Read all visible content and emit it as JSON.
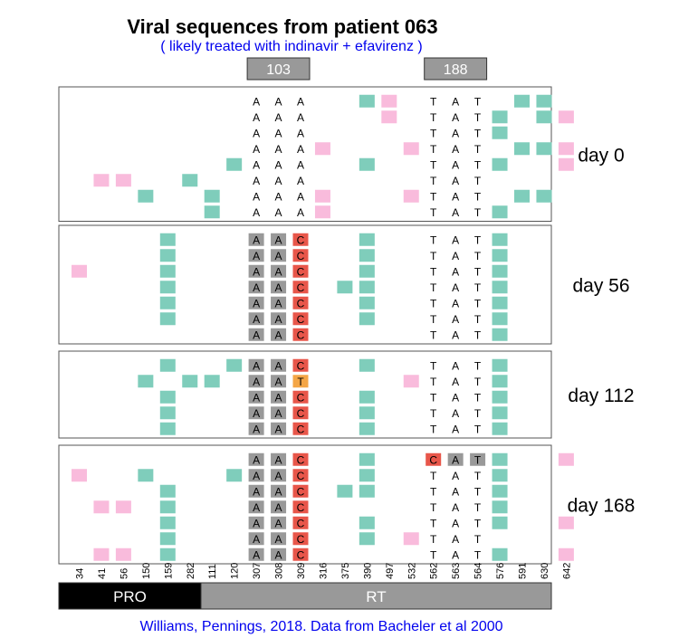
{
  "title": "Viral sequences from patient 063",
  "subtitle": "( likely treated with indinavir + efavirenz )",
  "codon_labels": [
    {
      "text": "103",
      "from": 307,
      "to": 309
    },
    {
      "text": "188",
      "from": 562,
      "to": 564
    }
  ],
  "positions": [
    "34",
    "41",
    "56",
    "150",
    "159",
    "282",
    "111",
    "120",
    "307",
    "308",
    "309",
    "316",
    "375",
    "390",
    "497",
    "532",
    "562",
    "563",
    "564",
    "576",
    "591",
    "630",
    "642"
  ],
  "regions": [
    {
      "label": "PRO",
      "from": 0,
      "to": 5,
      "color": "#000000"
    },
    {
      "label": "RT",
      "from": 6,
      "to": 22,
      "color": "#999999"
    }
  ],
  "credit": "Williams, Pennings, 2018. Data from Bacheler et al 2000",
  "colors": {
    "title": "#000000",
    "subtitle": "#0000ee",
    "credit": "#0000ee",
    "teal": "#7fcdbb",
    "pink": "#f9bbdc",
    "gray": "#999999",
    "red": "#e8564a",
    "orange": "#f4a646",
    "label_box": "#999999"
  },
  "panels": [
    {
      "day": "day 0",
      "rows": [
        {
          "cells": {
            "307": "A",
            "308": "A",
            "309": "A",
            "562": "T",
            "563": "A",
            "564": "T",
            "390": "teal",
            "497": "pink",
            "591": "teal",
            "630": "teal"
          }
        },
        {
          "cells": {
            "307": "A",
            "308": "A",
            "309": "A",
            "562": "T",
            "563": "A",
            "564": "T",
            "497": "pink",
            "576": "teal",
            "630": "teal",
            "642": "pink"
          }
        },
        {
          "cells": {
            "307": "A",
            "308": "A",
            "309": "A",
            "562": "T",
            "563": "A",
            "564": "T",
            "576": "teal"
          }
        },
        {
          "cells": {
            "307": "A",
            "308": "A",
            "309": "A",
            "562": "T",
            "563": "A",
            "564": "T",
            "316": "pink",
            "532": "pink",
            "591": "teal",
            "630": "teal",
            "642": "pink"
          }
        },
        {
          "cells": {
            "307": "A",
            "308": "A",
            "309": "A",
            "562": "T",
            "563": "A",
            "564": "T",
            "120": "teal",
            "390": "teal",
            "576": "teal",
            "642": "pink"
          }
        },
        {
          "cells": {
            "307": "A",
            "308": "A",
            "309": "A",
            "562": "T",
            "563": "A",
            "564": "T",
            "41": "pink",
            "56": "pink",
            "282": "teal"
          }
        },
        {
          "cells": {
            "307": "A",
            "308": "A",
            "309": "A",
            "562": "T",
            "563": "A",
            "564": "T",
            "150": "teal",
            "111": "teal",
            "316": "pink",
            "532": "pink",
            "591": "teal",
            "630": "teal"
          }
        },
        {
          "cells": {
            "307": "A",
            "308": "A",
            "309": "A",
            "562": "T",
            "563": "A",
            "564": "T",
            "111": "teal",
            "316": "pink",
            "576": "teal"
          }
        }
      ]
    },
    {
      "day": "day 56",
      "rows": [
        {
          "cells": {
            "307": "A:gray",
            "308": "A:gray",
            "309": "C:red",
            "562": "T",
            "563": "A",
            "564": "T",
            "159": "teal",
            "390": "teal",
            "576": "teal"
          }
        },
        {
          "cells": {
            "307": "A:gray",
            "308": "A:gray",
            "309": "C:red",
            "562": "T",
            "563": "A",
            "564": "T",
            "159": "teal",
            "390": "teal",
            "576": "teal"
          }
        },
        {
          "cells": {
            "307": "A:gray",
            "308": "A:gray",
            "309": "C:red",
            "562": "T",
            "563": "A",
            "564": "T",
            "34": "pink",
            "159": "teal",
            "390": "teal",
            "576": "teal"
          }
        },
        {
          "cells": {
            "307": "A:gray",
            "308": "A:gray",
            "309": "C:red",
            "562": "T",
            "563": "A",
            "564": "T",
            "159": "teal",
            "375": "teal",
            "390": "teal",
            "576": "teal"
          }
        },
        {
          "cells": {
            "307": "A:gray",
            "308": "A:gray",
            "309": "C:red",
            "562": "T",
            "563": "A",
            "564": "T",
            "159": "teal",
            "390": "teal",
            "576": "teal"
          }
        },
        {
          "cells": {
            "307": "A:gray",
            "308": "A:gray",
            "309": "C:red",
            "562": "T",
            "563": "A",
            "564": "T",
            "159": "teal",
            "390": "teal",
            "576": "teal"
          }
        },
        {
          "cells": {
            "307": "A:gray",
            "308": "A:gray",
            "309": "C:red",
            "562": "T",
            "563": "A",
            "564": "T",
            "576": "teal"
          }
        }
      ]
    },
    {
      "day": "day 112",
      "rows": [
        {
          "cells": {
            "307": "A:gray",
            "308": "A:gray",
            "309": "C:red",
            "562": "T",
            "563": "A",
            "564": "T",
            "159": "teal",
            "120": "teal",
            "390": "teal",
            "576": "teal"
          }
        },
        {
          "cells": {
            "307": "A:gray",
            "308": "A:gray",
            "309": "T:orange",
            "562": "T",
            "563": "A",
            "564": "T",
            "150": "teal",
            "282": "teal",
            "111": "teal",
            "532": "pink",
            "576": "teal"
          }
        },
        {
          "cells": {
            "307": "A:gray",
            "308": "A:gray",
            "309": "C:red",
            "562": "T",
            "563": "A",
            "564": "T",
            "159": "teal",
            "390": "teal",
            "576": "teal"
          }
        },
        {
          "cells": {
            "307": "A:gray",
            "308": "A:gray",
            "309": "C:red",
            "562": "T",
            "563": "A",
            "564": "T",
            "159": "teal",
            "390": "teal",
            "576": "teal"
          }
        },
        {
          "cells": {
            "307": "A:gray",
            "308": "A:gray",
            "309": "C:red",
            "562": "T",
            "563": "A",
            "564": "T",
            "159": "teal",
            "390": "teal",
            "576": "teal"
          }
        }
      ]
    },
    {
      "day": "day 168",
      "rows": [
        {
          "cells": {
            "307": "A:gray",
            "308": "A:gray",
            "309": "C:red",
            "562": "C:red",
            "563": "A:gray",
            "564": "T:gray",
            "390": "teal",
            "576": "teal",
            "642": "pink"
          }
        },
        {
          "cells": {
            "307": "A:gray",
            "308": "A:gray",
            "309": "C:red",
            "562": "T",
            "563": "A",
            "564": "T",
            "34": "pink",
            "150": "teal",
            "120": "teal",
            "390": "teal",
            "576": "teal"
          }
        },
        {
          "cells": {
            "307": "A:gray",
            "308": "A:gray",
            "309": "C:red",
            "562": "T",
            "563": "A",
            "564": "T",
            "159": "teal",
            "375": "teal",
            "390": "teal",
            "576": "teal"
          }
        },
        {
          "cells": {
            "307": "A:gray",
            "308": "A:gray",
            "309": "C:red",
            "562": "T",
            "563": "A",
            "564": "T",
            "41": "pink",
            "56": "pink",
            "159": "teal",
            "576": "teal"
          }
        },
        {
          "cells": {
            "307": "A:gray",
            "308": "A:gray",
            "309": "C:red",
            "562": "T",
            "563": "A",
            "564": "T",
            "159": "teal",
            "390": "teal",
            "576": "teal",
            "642": "pink"
          }
        },
        {
          "cells": {
            "307": "A:gray",
            "308": "A:gray",
            "309": "C:red",
            "562": "T",
            "563": "A",
            "564": "T",
            "159": "teal",
            "390": "teal",
            "532": "pink"
          }
        },
        {
          "cells": {
            "307": "A:gray",
            "308": "A:gray",
            "309": "C:red",
            "562": "T",
            "563": "A",
            "564": "T",
            "41": "pink",
            "56": "pink",
            "159": "teal",
            "576": "teal",
            "642": "pink"
          }
        }
      ]
    }
  ]
}
